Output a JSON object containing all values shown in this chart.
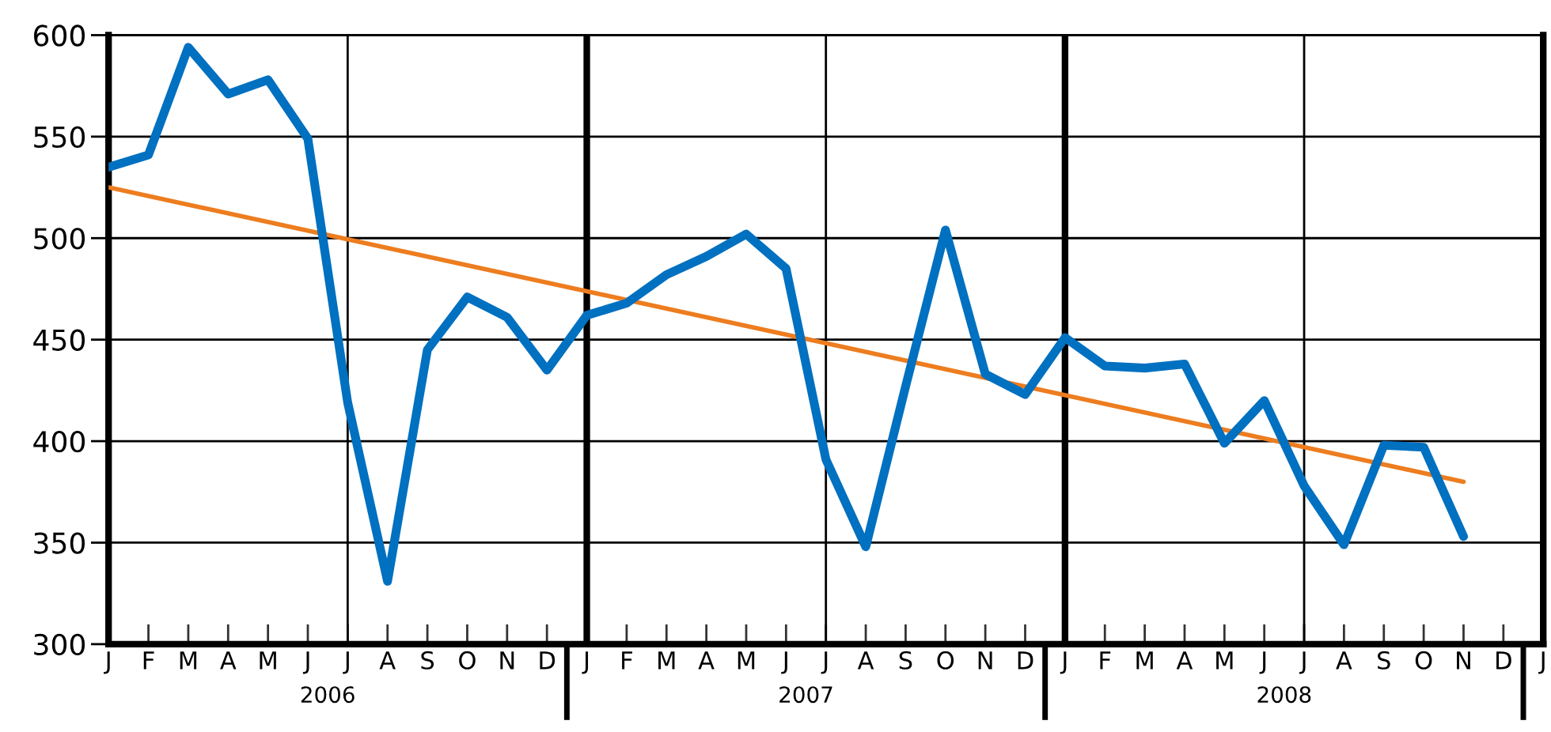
{
  "chart_data": {
    "type": "line",
    "categories": [
      "J",
      "F",
      "M",
      "A",
      "M",
      "J",
      "J",
      "A",
      "S",
      "O",
      "N",
      "D",
      "J",
      "F",
      "M",
      "A",
      "M",
      "J",
      "J",
      "A",
      "S",
      "O",
      "N",
      "D",
      "J",
      "F",
      "M",
      "A",
      "M",
      "J",
      "J",
      "A",
      "S",
      "O",
      "N",
      "D",
      "J"
    ],
    "series": [
      {
        "color": "#0070c0",
        "values": [
          535,
          541,
          594,
          571,
          578,
          549,
          419,
          331,
          445,
          471,
          461,
          435,
          462,
          468,
          482,
          491,
          502,
          485,
          391,
          348,
          427,
          504,
          433,
          423,
          451,
          437,
          436,
          438,
          399,
          420,
          378,
          349,
          398,
          397,
          353,
          null,
          null
        ]
      },
      {
        "type": "line",
        "color": "#ed7d1f",
        "values": [
          525,
          null,
          null,
          null,
          null,
          null,
          null,
          null,
          null,
          null,
          null,
          null,
          null,
          null,
          null,
          null,
          null,
          null,
          null,
          null,
          null,
          null,
          null,
          null,
          null,
          null,
          null,
          null,
          null,
          null,
          null,
          null,
          null,
          null,
          380,
          null,
          null
        ]
      }
    ],
    "ylim": [
      300,
      600
    ],
    "yticks": [
      300,
      350,
      400,
      450,
      500,
      550,
      600
    ],
    "grid": true,
    "annotations": [
      "2006",
      "2007",
      "2008"
    ],
    "legend": false,
    "marker": "none",
    "line_style": "solid"
  }
}
